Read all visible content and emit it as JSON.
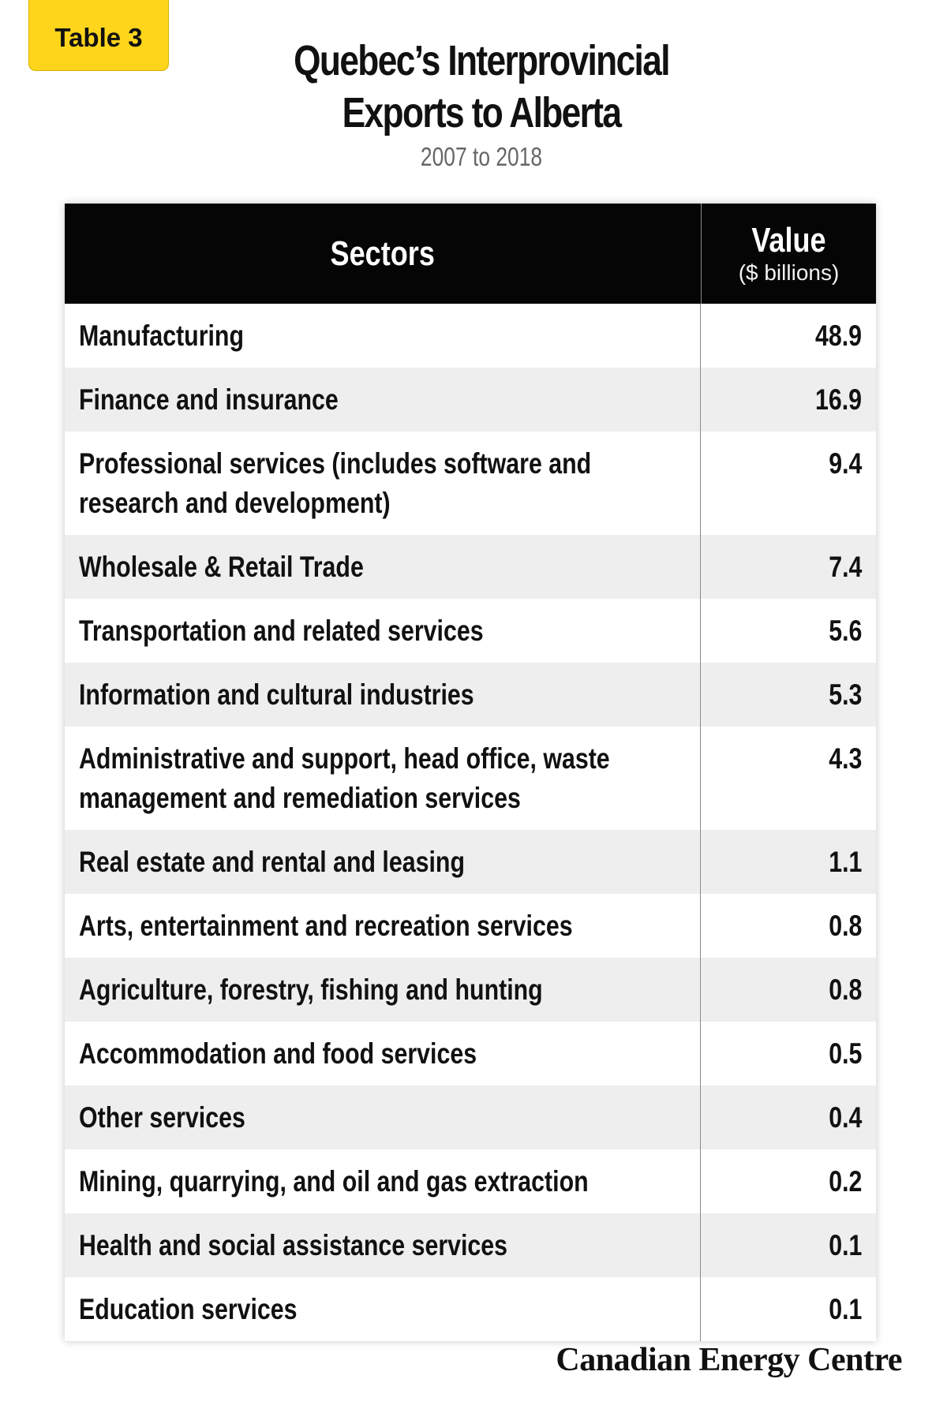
{
  "badge": "Table 3",
  "title": "Quebec’s Interprovincial Exports to Alberta",
  "subtitle": "2007 to 2018",
  "footer": {
    "brand": "Canadian Energy Centre"
  },
  "chart_data": {
    "type": "table",
    "title": "Quebec’s Interprovincial Exports to Alberta",
    "subtitle": "2007 to 2018",
    "columns": [
      {
        "label": "Sectors",
        "unit": ""
      },
      {
        "label": "Value",
        "unit": "($ billions)"
      }
    ],
    "rows": [
      {
        "sector": "Manufacturing",
        "value": "48.9"
      },
      {
        "sector": "Finance and insurance",
        "value": "16.9"
      },
      {
        "sector": "Professional services (includes software and research and development)",
        "value": "9.4"
      },
      {
        "sector": "Wholesale & Retail Trade",
        "value": "7.4"
      },
      {
        "sector": "Transportation and related services",
        "value": "5.6"
      },
      {
        "sector": "Information and cultural industries",
        "value": "5.3"
      },
      {
        "sector": "Administrative and support, head office, waste management and remediation services",
        "value": "4.3"
      },
      {
        "sector": "Real estate and rental and leasing",
        "value": "1.1"
      },
      {
        "sector": "Arts, entertainment and recreation services",
        "value": "0.8"
      },
      {
        "sector": "Agriculture, forestry, fishing and hunting",
        "value": "0.8"
      },
      {
        "sector": "Accommodation and food services",
        "value": "0.5"
      },
      {
        "sector": "Other services",
        "value": "0.4"
      },
      {
        "sector": "Mining, quarrying, and oil and gas extraction",
        "value": "0.2"
      },
      {
        "sector": "Health and social assistance services",
        "value": "0.1"
      },
      {
        "sector": "Education services",
        "value": "0.1"
      }
    ]
  },
  "colors": {
    "badge": "#FFD51C",
    "header": "#050505",
    "row_alt": "#EEEEEE",
    "subtitle": "#666666"
  }
}
